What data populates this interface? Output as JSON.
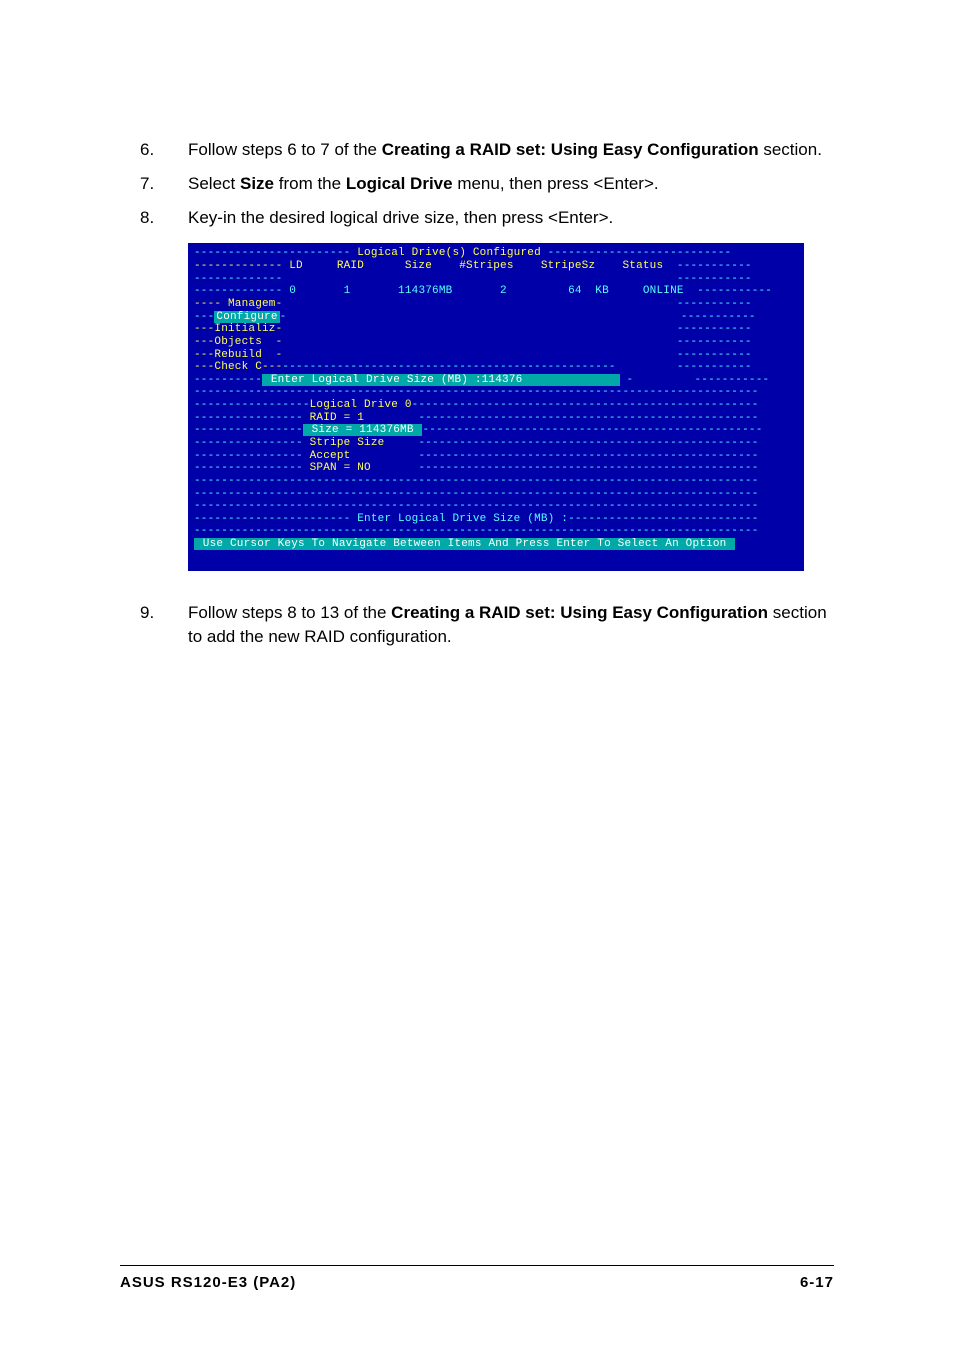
{
  "steps": [
    {
      "num": "6.",
      "parts": [
        {
          "text": "Follow steps 6 to 7 of the ",
          "bold": false
        },
        {
          "text": "Creating a RAID set: Using Easy Configuration",
          "bold": true
        },
        {
          "text": " section.",
          "bold": false
        }
      ]
    },
    {
      "num": "7.",
      "parts": [
        {
          "text": "Select ",
          "bold": false
        },
        {
          "text": "Size",
          "bold": true
        },
        {
          "text": " from the ",
          "bold": false
        },
        {
          "text": "Logical Drive",
          "bold": true
        },
        {
          "text": " menu, then press <Enter>.",
          "bold": false
        }
      ]
    },
    {
      "num": "8.",
      "parts": [
        {
          "text": "Key-in the desired logical drive size, then press <Enter>.",
          "bold": false
        }
      ]
    }
  ],
  "step9": {
    "num": "9.",
    "parts": [
      {
        "text": "Follow steps 8 to 13 of the ",
        "bold": false
      },
      {
        "text": "Creating a RAID set: Using Easy Configuration",
        "bold": true
      },
      {
        "text": " section to add the new RAID configuration.",
        "bold": false
      }
    ]
  },
  "bios": {
    "title_prefix": "-----------------------",
    "title": " Logical Drive(s) Configured ",
    "title_suffix": "--",
    "header_cols": "------------- LD     RAID      Size    #Stripes    StripeSz    Status  ",
    "dash_short_left": "-------------",
    "dash_short_right": "----------",
    "data_row_prefix": "------------- ",
    "data_row": "0       1       114376MB       2         64  KB     ONLINE",
    "menu_items": [
      "---- Managem-",
      "---Configure-",
      "---Initializ-",
      "---Objects  -",
      "---Rebuild  -",
      "---Check C---"
    ],
    "input_label": "---------- Enter Logical Drive Size (MB) :",
    "input_value": "114376          ",
    "ld0_title": "-----------------Logical Drive 0----",
    "ld0_items": [
      "---------------- RAID = 1",
      "---------------- Size = 114376MB",
      "---------------- Stripe Size",
      "---------------- Accept",
      "---------------- SPAN = NO"
    ],
    "prompt": " Enter Logical Drive Size (MB) :",
    "navbar": " Use Cursor Keys To Navigate Between Items And Press Enter To Select An Option "
  },
  "footer": {
    "left": "ASUS RS120-E3 (PA2)",
    "right": "6-17"
  },
  "colors": {
    "bios_bg": "#0000a8",
    "bios_cyan": "#55ffff",
    "bios_yellow": "#ffff55",
    "bios_white": "#ffffff",
    "bios_magenta": "#ff55ff",
    "bios_highlight_bg": "#00a8a8",
    "bios_highlight_fg": "#ffffff",
    "page_bg": "#ffffff",
    "text": "#000000"
  },
  "typography": {
    "body_fontsize": 17,
    "bios_fontsize": 11,
    "footer_fontsize": 15
  }
}
